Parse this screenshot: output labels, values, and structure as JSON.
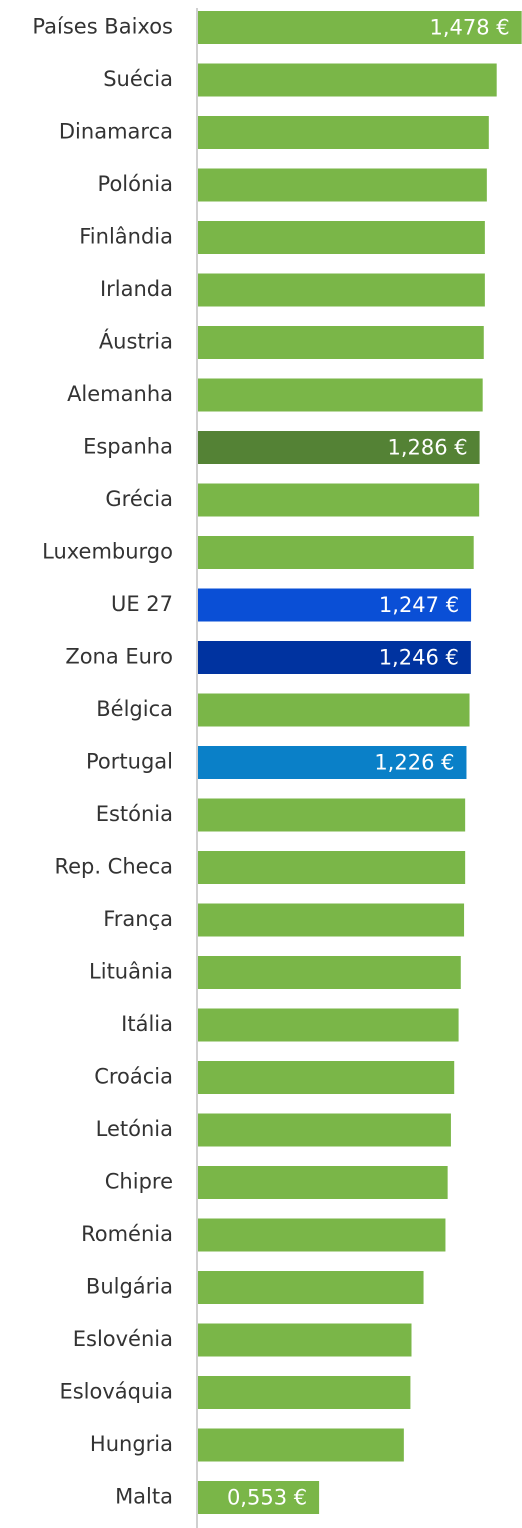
{
  "chart_data": {
    "type": "bar",
    "orientation": "horizontal",
    "categories": [
      "Países Baixos",
      "Suécia",
      "Dinamarca",
      "Polónia",
      "Finlândia",
      "Irlanda",
      "Áustria",
      "Alemanha",
      "Espanha",
      "Grécia",
      "Luxemburgo",
      "UE 27",
      "Zona Euro",
      "Bélgica",
      "Portugal",
      "Estónia",
      "Rep. Checa",
      "França",
      "Lituânia",
      "Itália",
      "Croácia",
      "Letónia",
      "Chipre",
      "Roménia",
      "Bulgária",
      "Eslovénia",
      "Eslováquia",
      "Hungria",
      "Malta"
    ],
    "values": [
      1.478,
      1.364,
      1.328,
      1.319,
      1.31,
      1.31,
      1.305,
      1.3,
      1.286,
      1.284,
      1.259,
      1.247,
      1.246,
      1.24,
      1.226,
      1.22,
      1.22,
      1.215,
      1.2,
      1.19,
      1.17,
      1.155,
      1.14,
      1.13,
      1.03,
      0.975,
      0.97,
      0.94,
      0.553
    ],
    "value_labels": [
      "1,478 €",
      null,
      null,
      null,
      null,
      null,
      null,
      null,
      "1,286 €",
      null,
      null,
      "1,247 €",
      "1,246 €",
      null,
      "1,226 €",
      null,
      null,
      null,
      null,
      null,
      null,
      null,
      null,
      null,
      null,
      null,
      null,
      null,
      "0,553 €"
    ],
    "colors": [
      "#7ab648",
      "#7ab648",
      "#7ab648",
      "#7ab648",
      "#7ab648",
      "#7ab648",
      "#7ab648",
      "#7ab648",
      "#548235",
      "#7ab648",
      "#7ab648",
      "#0a4fd6",
      "#0033a0",
      "#7ab648",
      "#0a80c8",
      "#7ab648",
      "#7ab648",
      "#7ab648",
      "#7ab648",
      "#7ab648",
      "#7ab648",
      "#7ab648",
      "#7ab648",
      "#7ab648",
      "#7ab648",
      "#7ab648",
      "#7ab648",
      "#7ab648",
      "#7ab648"
    ],
    "xlim": [
      0,
      1.475
    ]
  }
}
